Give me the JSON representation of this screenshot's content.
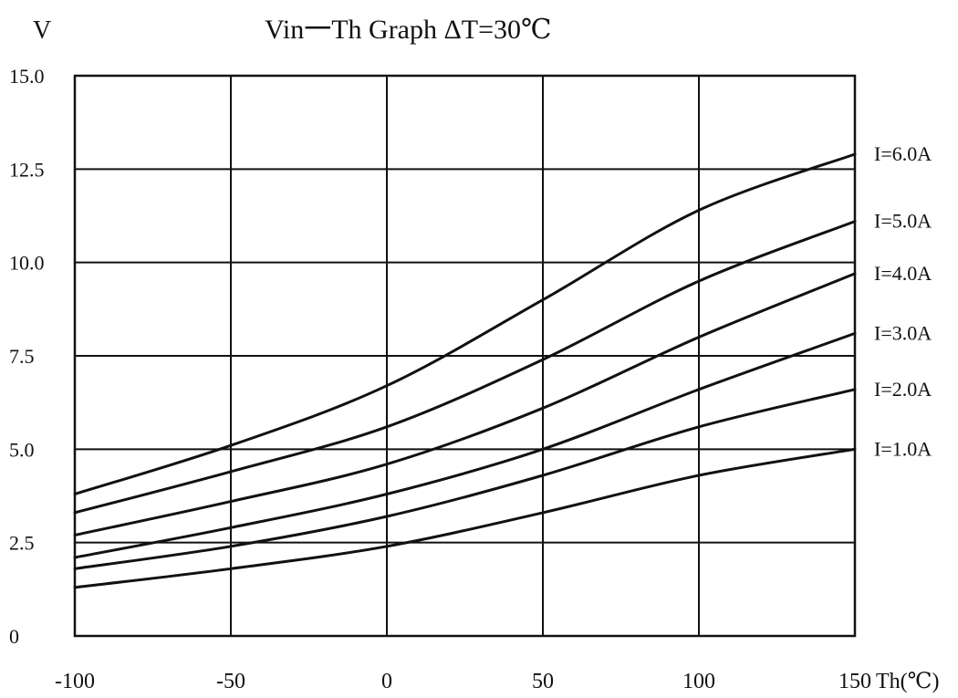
{
  "chart_data": {
    "type": "line",
    "title": "Vin一Th Graph    ΔT=30℃",
    "ylabel": "V",
    "xlabel": "Th(℃)",
    "xlim": [
      -100,
      150
    ],
    "ylim": [
      0,
      15
    ],
    "x_ticks": [
      -100,
      -50,
      0,
      50,
      100,
      150
    ],
    "x_tick_labels": [
      "-100",
      "-50",
      "0",
      "50",
      "100",
      "150"
    ],
    "y_ticks": [
      0,
      2.5,
      5,
      7.5,
      10,
      12.5,
      15
    ],
    "y_tick_labels": [
      "0",
      "2.5",
      "5.0",
      "7.5",
      "10.0",
      "12.5",
      "15.0"
    ],
    "grid": true,
    "legend": "series labels at right end of each line",
    "line_color": "#111111",
    "x": [
      -100,
      -50,
      0,
      50,
      100,
      150
    ],
    "series": [
      {
        "name": "I=6.0A",
        "values": [
          3.8,
          5.1,
          6.7,
          9.0,
          11.4,
          12.9
        ]
      },
      {
        "name": "I=5.0A",
        "values": [
          3.3,
          4.4,
          5.6,
          7.4,
          9.5,
          11.1
        ]
      },
      {
        "name": "I=4.0A",
        "values": [
          2.7,
          3.6,
          4.6,
          6.1,
          8.0,
          9.7
        ]
      },
      {
        "name": "I=3.0A",
        "values": [
          2.1,
          2.9,
          3.8,
          5.0,
          6.6,
          8.1
        ]
      },
      {
        "name": "I=2.0A",
        "values": [
          1.8,
          2.4,
          3.2,
          4.3,
          5.6,
          6.6
        ]
      },
      {
        "name": "I=1.0A",
        "values": [
          1.3,
          1.8,
          2.4,
          3.3,
          4.3,
          5.0
        ]
      }
    ]
  }
}
